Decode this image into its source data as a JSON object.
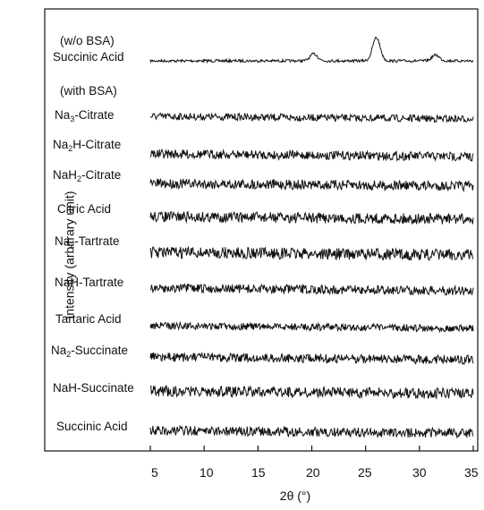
{
  "chart_data": {
    "type": "line",
    "xlabel": "2θ (°)",
    "ylabel": "Intensity (arbitrary unit)",
    "xlim": [
      5,
      35
    ],
    "x_ticks": [
      "5",
      "10",
      "15",
      "20",
      "25",
      "30",
      "35"
    ],
    "grid": false,
    "legend": "none",
    "group_labels": [
      "(w/o BSA)",
      "(with BSA)"
    ],
    "series": [
      {
        "name": "Succinic Acid",
        "group": "(w/o BSA)",
        "peaks": [
          {
            "x": 20.2,
            "height": 0.3
          },
          {
            "x": 26.0,
            "height": 1.0
          },
          {
            "x": 31.5,
            "height": 0.25
          }
        ]
      },
      {
        "name": "Na3-Citrate",
        "group": "(with BSA)",
        "peaks": []
      },
      {
        "name": "Na2H-Citrate",
        "group": "(with BSA)",
        "peaks": []
      },
      {
        "name": "NaH2-Citrate",
        "group": "(with BSA)",
        "peaks": []
      },
      {
        "name": "Citric Acid",
        "group": "(with BSA)",
        "peaks": []
      },
      {
        "name": "Na2-Tartrate",
        "group": "(with BSA)",
        "peaks": []
      },
      {
        "name": "NaH-Tartrate",
        "group": "(with BSA)",
        "peaks": []
      },
      {
        "name": "Tartaric Acid",
        "group": "(with BSA)",
        "peaks": []
      },
      {
        "name": "Na2-Succinate",
        "group": "(with BSA)",
        "peaks": []
      },
      {
        "name": "NaH-Succinate",
        "group": "(with BSA)",
        "peaks": []
      },
      {
        "name": "Succinic Acid",
        "group": "(with BSA)",
        "peaks": []
      }
    ]
  },
  "labels": {
    "group_wo": "(w/o BSA)",
    "group_with": "(with BSA)",
    "s0": "Succinic Acid",
    "s1a": "Na",
    "s1b": "3",
    "s1c": "-Citrate",
    "s2a": "Na",
    "s2b": "2",
    "s2c": "H-Citrate",
    "s3a": "NaH",
    "s3b": "2",
    "s3c": "-Citrate",
    "s4": "Citric Acid",
    "s5a": "Na",
    "s5b": "2",
    "s5c": "-Tartrate",
    "s6": "NaH-Tartrate",
    "s7": "Tartaric Acid",
    "s8a": "Na",
    "s8b": "2",
    "s8c": "-Succinate",
    "s9": "NaH-Succinate",
    "s10": "Succinic Acid"
  }
}
